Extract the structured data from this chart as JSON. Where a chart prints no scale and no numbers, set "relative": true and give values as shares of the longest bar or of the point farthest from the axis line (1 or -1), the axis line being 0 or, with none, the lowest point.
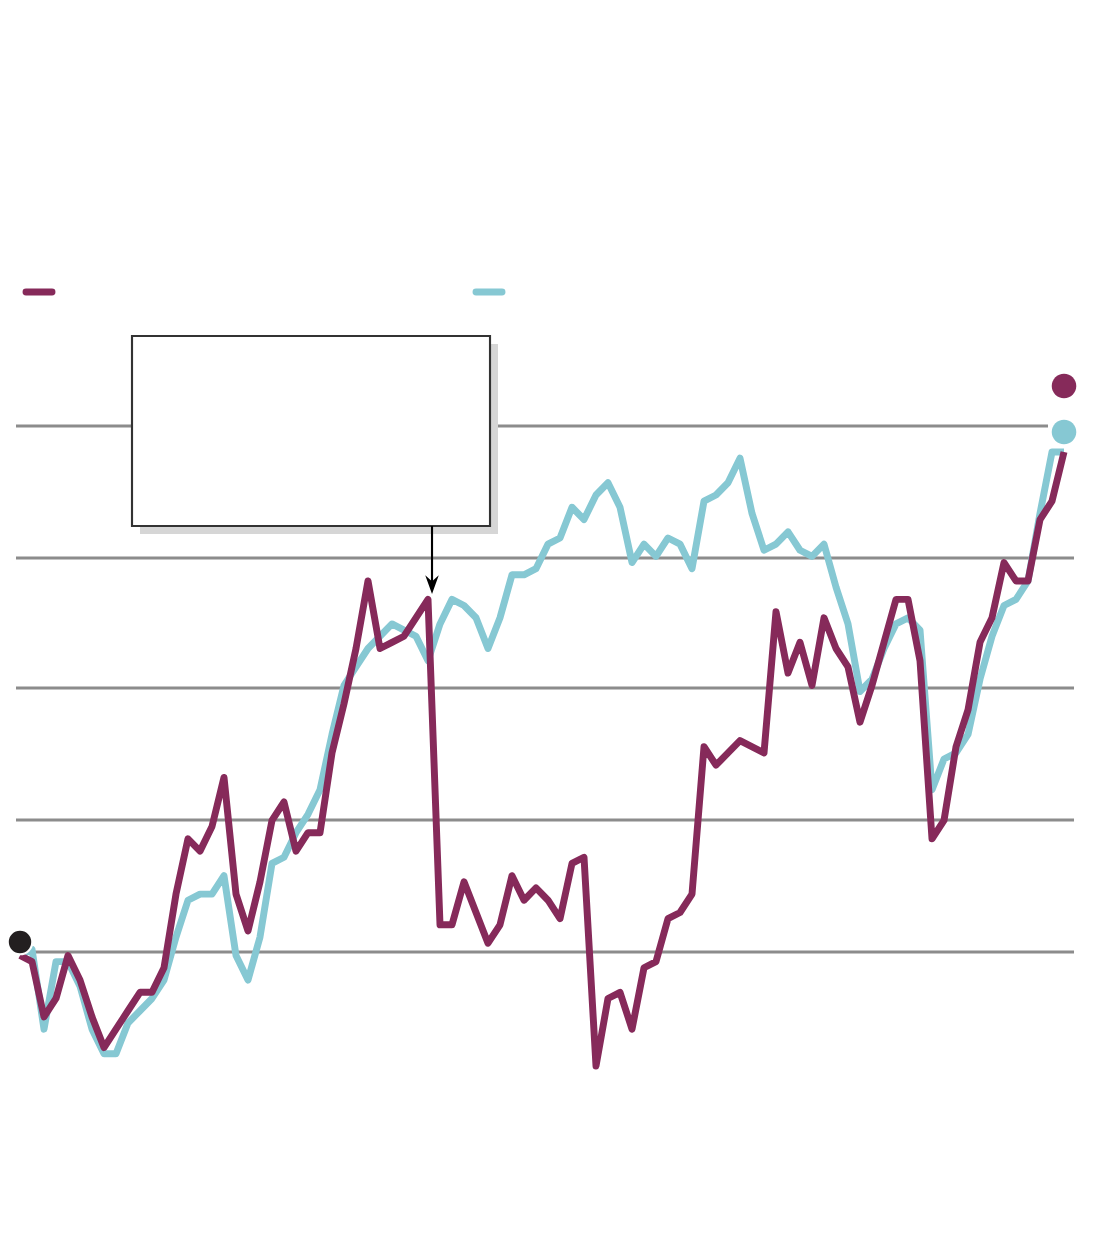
{
  "chart_data": {
    "type": "line",
    "relative": true,
    "grid": "y",
    "categories": [
      null,
      null,
      null,
      null,
      null,
      null,
      null,
      null,
      null,
      null,
      null,
      null,
      null,
      null,
      null,
      null,
      null,
      null,
      null,
      null,
      null,
      null,
      null,
      null,
      null,
      null,
      null,
      null,
      null,
      null,
      null,
      null,
      null,
      null,
      null,
      null,
      null,
      null,
      null,
      null,
      null,
      null,
      null,
      null,
      null,
      null,
      null,
      null,
      null,
      null,
      null,
      null,
      null,
      null,
      null,
      null,
      null,
      null,
      null,
      null,
      null,
      null,
      null,
      null,
      null,
      null,
      null,
      null,
      null,
      null,
      null,
      null,
      null,
      null,
      null,
      null,
      null,
      null,
      null,
      null,
      null,
      null,
      null,
      null,
      null,
      null,
      null,
      null
    ],
    "series": [
      {
        "color": "#862a5a",
        "values": [
          0.18,
          0.17,
          0.08,
          0.11,
          0.18,
          0.14,
          0.08,
          0.03,
          0.06,
          0.09,
          0.12,
          0.12,
          0.16,
          0.28,
          0.37,
          0.35,
          0.39,
          0.47,
          0.28,
          0.22,
          0.3,
          0.4,
          0.43,
          0.35,
          0.38,
          0.38,
          0.51,
          0.59,
          0.68,
          0.79,
          0.68,
          0.69,
          0.7,
          0.73,
          0.76,
          0.23,
          0.23,
          0.3,
          0.25,
          0.2,
          0.23,
          0.31,
          0.27,
          0.29,
          0.27,
          0.24,
          0.33,
          0.34,
          0,
          0.11,
          0.12,
          0.06,
          0.16,
          0.17,
          0.24,
          0.25,
          0.28,
          0.52,
          0.49,
          0.51,
          0.53,
          0.52,
          0.51,
          0.74,
          0.64,
          0.69,
          0.62,
          0.73,
          0.68,
          0.65,
          0.56,
          0.62,
          0.69,
          0.76,
          0.76,
          0.66,
          0.37,
          0.4,
          0.52,
          0.58,
          0.69,
          0.73,
          0.82,
          0.79,
          0.79,
          0.89,
          0.92,
          1.0
        ]
      },
      {
        "color": "#86c8d3",
        "values": [
          0.18,
          0.19,
          0.06,
          0.17,
          0.17,
          0.13,
          0.06,
          0.02,
          0.02,
          0.07,
          0.09,
          0.11,
          0.14,
          0.21,
          0.27,
          0.28,
          0.28,
          0.31,
          0.18,
          0.14,
          0.21,
          0.33,
          0.34,
          0.38,
          0.41,
          0.45,
          0.54,
          0.62,
          0.65,
          0.68,
          0.7,
          0.72,
          0.71,
          0.7,
          0.66,
          0.72,
          0.76,
          0.75,
          0.73,
          0.68,
          0.73,
          0.8,
          0.8,
          0.81,
          0.85,
          0.86,
          0.91,
          0.89,
          0.93,
          0.95,
          0.91,
          0.82,
          0.85,
          0.83,
          0.86,
          0.85,
          0.81,
          0.92,
          0.93,
          0.95,
          0.99,
          0.9,
          0.84,
          0.85,
          0.87,
          0.84,
          0.83,
          0.85,
          0.78,
          0.72,
          0.61,
          0.63,
          0.68,
          0.72,
          0.73,
          0.71,
          0.45,
          0.5,
          0.51,
          0.54,
          0.63,
          0.7,
          0.75,
          0.76,
          0.79,
          0.9,
          1.0,
          1.0
        ]
      }
    ]
  }
}
